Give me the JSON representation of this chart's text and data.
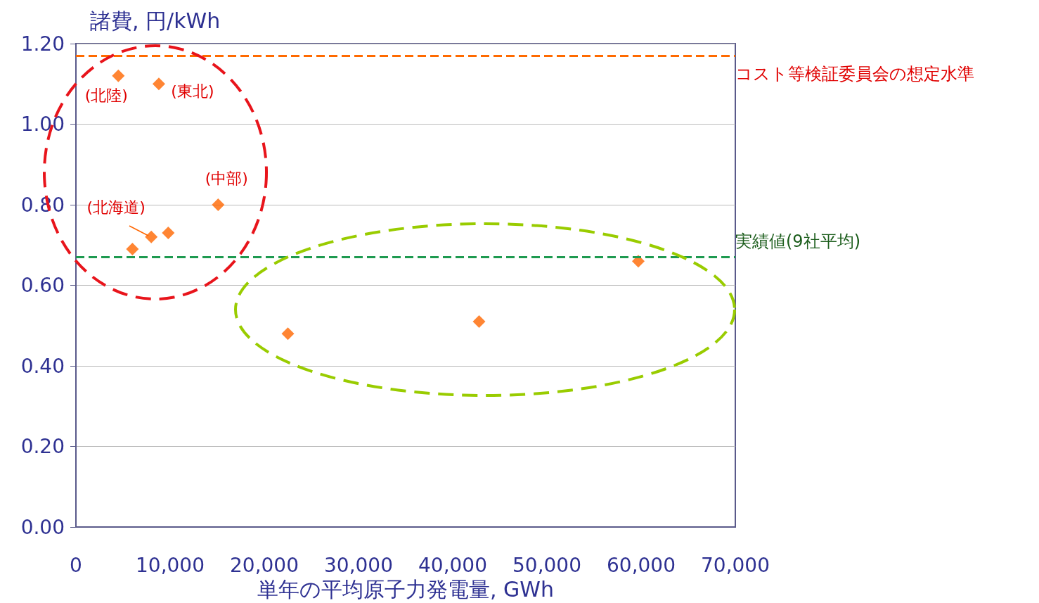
{
  "chart_data": {
    "type": "scatter",
    "xlabel": "単年の平均原子力発電量, GWh",
    "ylabel": "諸費, 円/kWh",
    "x": [
      4500,
      8800,
      15100,
      9800,
      8000,
      6000,
      22500,
      42800,
      59700
    ],
    "values": [
      1.12,
      1.1,
      0.8,
      0.73,
      0.72,
      0.69,
      0.48,
      0.51,
      0.66
    ],
    "color": "#ff6600",
    "marker": "diamond",
    "grid": "y",
    "xlim": [
      0,
      70000
    ],
    "ylim": [
      0,
      1.2
    ],
    "xticks": [
      0,
      {
        "value": 10000,
        "label": "10,000"
      },
      {
        "value": 20000,
        "label": "20,000"
      },
      {
        "value": 30000,
        "label": "30,000"
      },
      {
        "value": 40000,
        "label": "40,000"
      },
      {
        "value": 50000,
        "label": "50,000"
      },
      {
        "value": 60000,
        "label": "60,000"
      },
      {
        "value": 70000,
        "label": "70,000"
      }
    ],
    "yticks": [
      {
        "value": 0,
        "label": "0.00"
      },
      {
        "value": 0.2,
        "label": "0.20"
      },
      {
        "value": 0.4,
        "label": "0.40"
      },
      {
        "value": 0.6,
        "label": "0.60"
      },
      {
        "value": 0.8,
        "label": "0.80"
      },
      {
        "value": 1.0,
        "label": "1.00"
      },
      {
        "value": 1.2,
        "label": "1.20"
      }
    ],
    "ref_lines": [
      {
        "axis": "y",
        "value": 1.17,
        "label": "コスト等検証委員会の想定水準",
        "color": "#ff6a00",
        "line_style": "dashed"
      },
      {
        "axis": "y",
        "value": 0.67,
        "label": "実績値(9社平均)",
        "color": "#1e9a50",
        "line_style": "dashed"
      }
    ],
    "annotations": [
      {
        "text": "(北陸)",
        "x": 4500,
        "y": 1.12
      },
      {
        "text": "(東北)",
        "x": 8800,
        "y": 1.1
      },
      {
        "text": "(中部)",
        "x": 15100,
        "y": 0.8
      },
      {
        "text": "(北海道)",
        "x": 8000,
        "y": 0.72
      }
    ]
  }
}
